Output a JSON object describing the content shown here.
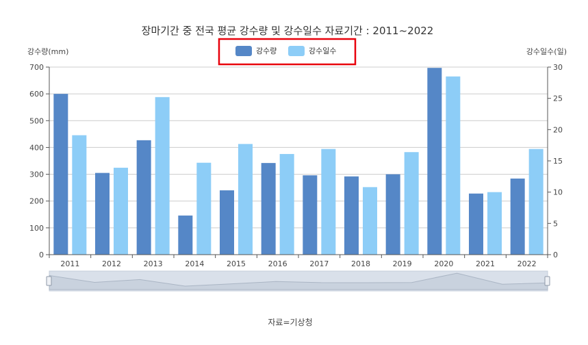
{
  "chart_data": {
    "type": "bar",
    "title": "장마기간 중 전국 평균 강수량 및 강수일수 자료기간 : 2011~2022",
    "categories": [
      "2011",
      "2012",
      "2013",
      "2014",
      "2015",
      "2016",
      "2017",
      "2018",
      "2019",
      "2020",
      "2021",
      "2022"
    ],
    "series": [
      {
        "name": "강수량",
        "axis": "left",
        "color": "#5587c7",
        "values": [
          600,
          305,
          427,
          146,
          240,
          342,
          296,
          292,
          300,
          697,
          228,
          284
        ]
      },
      {
        "name": "강수일수",
        "axis": "right",
        "color": "#8dcdf7",
        "values": [
          19.1,
          13.9,
          25.2,
          14.7,
          17.7,
          16.1,
          16.9,
          10.8,
          16.4,
          28.5,
          10.0,
          16.9
        ]
      }
    ],
    "ylabel_left": "강수량(mm)",
    "ylabel_right": "강수일수(일)",
    "ylim_left": [
      0,
      700
    ],
    "ylim_right": [
      0,
      30
    ],
    "yticks_left": [
      0,
      100,
      200,
      300,
      400,
      500,
      600,
      700
    ],
    "yticks_right": [
      0,
      5,
      10,
      15,
      20,
      25,
      30
    ],
    "grid": true,
    "legend_position": "top-center",
    "legend_highlight_color": "#e8000b",
    "source": "자료=기상청"
  }
}
